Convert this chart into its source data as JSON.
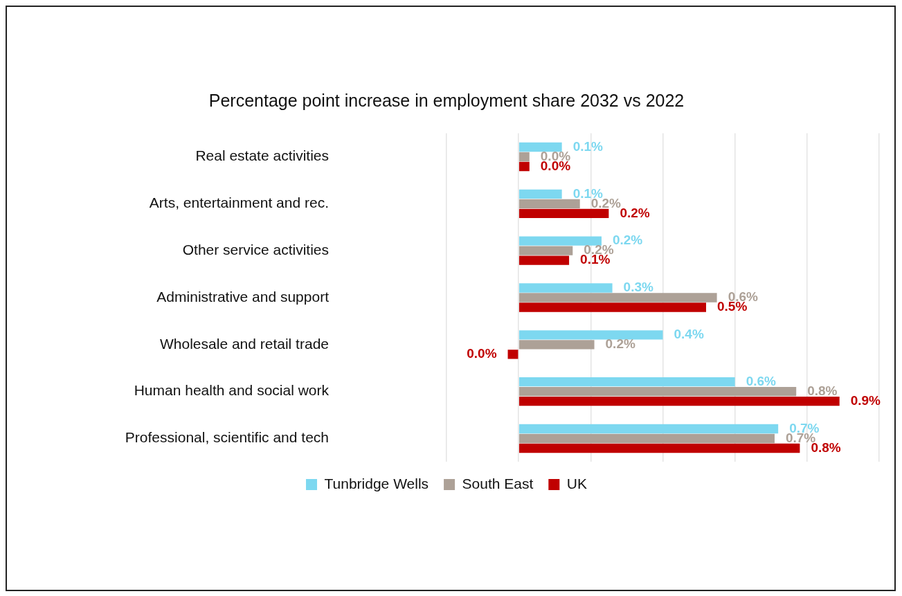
{
  "chart_data": {
    "type": "bar",
    "orientation": "horizontal",
    "title": "Percentage point increase in employment share 2032 vs 2022",
    "categories": [
      "Real estate activities",
      "Arts, entertainment and rec.",
      "Other service activities",
      "Administrative and support",
      "Wholesale and retail trade",
      "Human health and social work",
      "Professional, scientific and tech"
    ],
    "series": [
      {
        "name": "Tunbridge Wells",
        "color": "#7dd8f0",
        "values": [
          0.12,
          0.12,
          0.23,
          0.26,
          0.4,
          0.6,
          0.72
        ],
        "value_labels": [
          "0.1%",
          "0.1%",
          "0.2%",
          "0.3%",
          "0.4%",
          "0.6%",
          "0.7%"
        ]
      },
      {
        "name": "South East",
        "color": "#ada197",
        "values": [
          0.03,
          0.17,
          0.15,
          0.55,
          0.21,
          0.77,
          0.71
        ],
        "value_labels": [
          "0.0%",
          "0.2%",
          "0.2%",
          "0.6%",
          "0.2%",
          "0.8%",
          "0.7%"
        ]
      },
      {
        "name": "UK",
        "color": "#c00000",
        "values": [
          0.03,
          0.25,
          0.14,
          0.52,
          -0.03,
          0.89,
          0.78
        ],
        "value_labels": [
          "0.0%",
          "0.2%",
          "0.1%",
          "0.5%",
          "0.0%",
          "0.9%",
          "0.8%"
        ]
      }
    ],
    "xlim": [
      -0.2,
      1.0
    ],
    "xticks": [
      {
        "value": -0.2,
        "label": null
      },
      {
        "value": 0,
        "label": null
      },
      {
        "value": 0.2,
        "label": null
      },
      {
        "value": 0.4,
        "label": null
      },
      {
        "value": 0.6,
        "label": null
      },
      {
        "value": 0.8,
        "label": null
      },
      {
        "value": 1.0,
        "label": null
      }
    ],
    "grid": "x",
    "tick_labels": "y",
    "legend": "bottom"
  }
}
